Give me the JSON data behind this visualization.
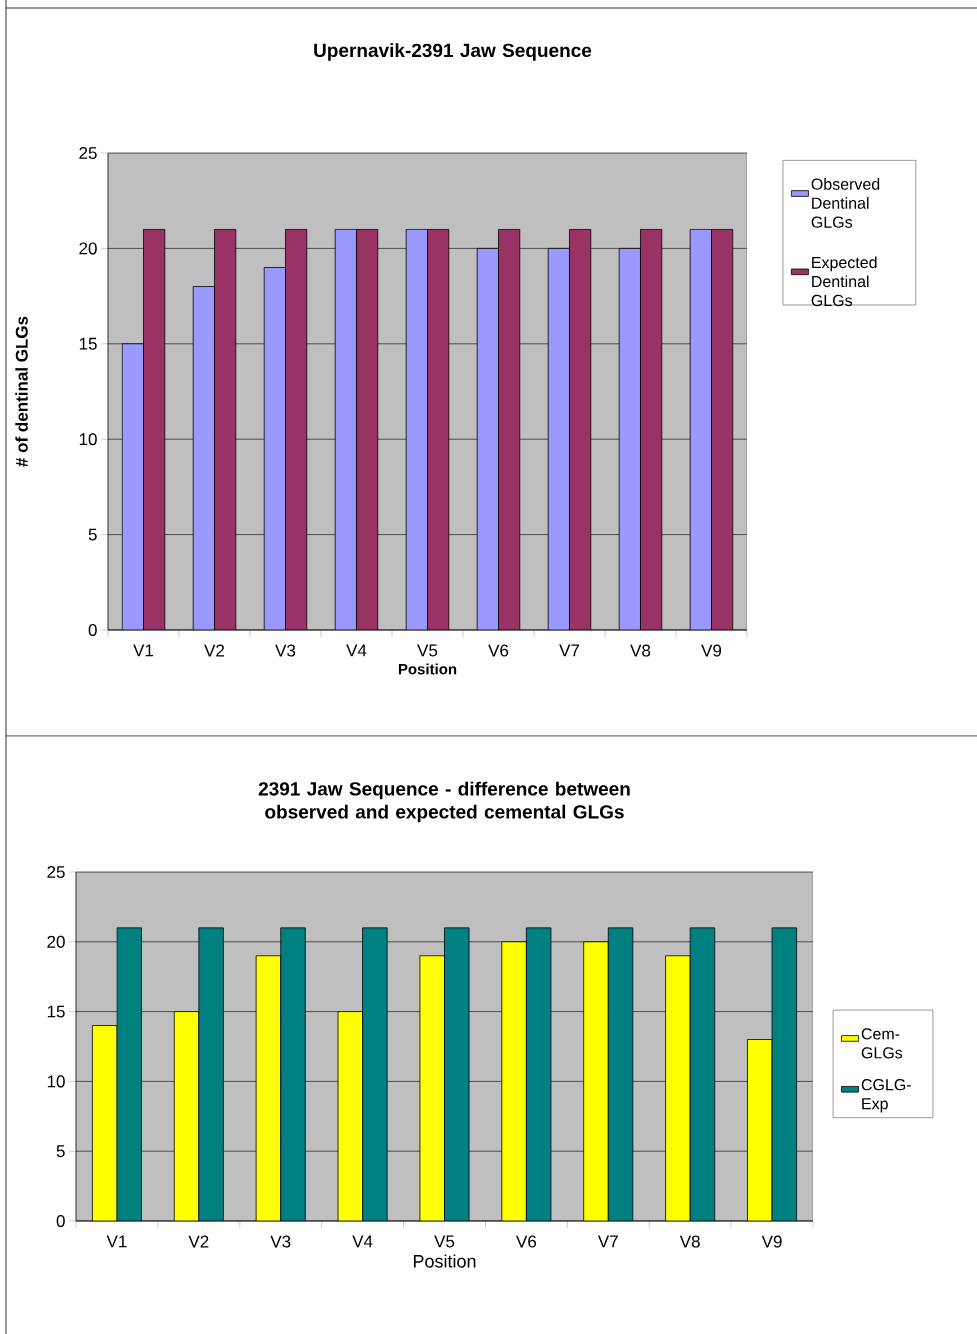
{
  "chart_data": [
    {
      "type": "bar",
      "title": "Upernavik-2391 Jaw Sequence",
      "xlabel": "Position",
      "ylabel": "# of dentinal GLGs",
      "categories": [
        "V1",
        "V2",
        "V3",
        "V4",
        "V5",
        "V6",
        "V7",
        "V8",
        "V9"
      ],
      "series": [
        {
          "name": "Observed Dentinal GLGs",
          "color": "#9999ff",
          "values": [
            15,
            18,
            19,
            21,
            21,
            20,
            20,
            20,
            21
          ]
        },
        {
          "name": "Expected Dentinal GLGs",
          "color": "#993366",
          "values": [
            21,
            21,
            21,
            21,
            21,
            21,
            21,
            21,
            21
          ]
        }
      ],
      "ylim": [
        0,
        25
      ],
      "yticks": [
        0,
        5,
        10,
        15,
        20,
        25
      ],
      "grid": "y",
      "legend": "right"
    },
    {
      "type": "bar",
      "title": "2391 Jaw Sequence - difference between observed and expected cemental GLGs",
      "xlabel": "Position",
      "categories": [
        "V1",
        "V2",
        "V3",
        "V4",
        "V5",
        "V6",
        "V7",
        "V8",
        "V9"
      ],
      "series": [
        {
          "name": "Cem-GLGs",
          "color": "#ffff00",
          "values": [
            14,
            15,
            19,
            15,
            19,
            20,
            20,
            19,
            13
          ]
        },
        {
          "name": "CGLG-Exp",
          "color": "#008080",
          "values": [
            21,
            21,
            21,
            21,
            21,
            21,
            21,
            21,
            21
          ]
        }
      ],
      "ylim": [
        0,
        25
      ],
      "yticks": [
        0,
        5,
        10,
        15,
        20,
        25
      ],
      "grid": "y",
      "legend": "right"
    }
  ]
}
